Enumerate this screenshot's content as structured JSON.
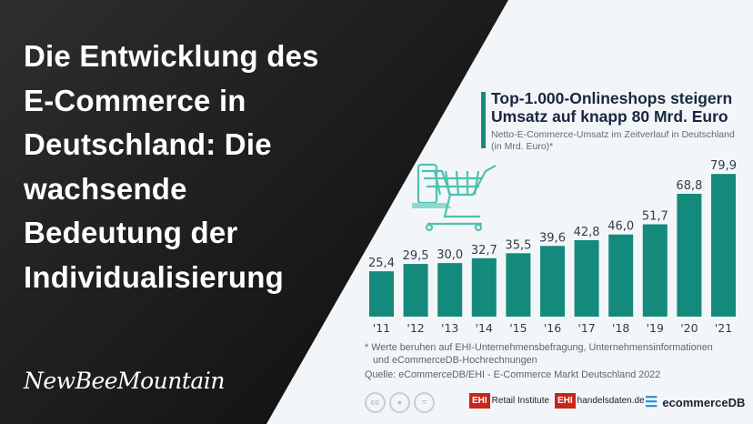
{
  "headline": [
    "Die Entwicklung des",
    "E-Commerce in",
    "Deutschland: Die",
    "wachsende",
    "Bedeutung der",
    "Individualisierung"
  ],
  "brand": "NewBeeMountain",
  "chart_data": {
    "type": "bar",
    "title": "Top-1.000-Onlineshops steigern Umsatz auf knapp 80 Mrd. Euro",
    "title_lines": [
      "Top-1.000-Onlineshops steigern",
      "Umsatz auf knapp 80 Mrd. Euro"
    ],
    "subtitle_lines": [
      "Netto-E-Commerce-Umsatz im Zeitverlauf in Deutschland",
      "(in Mrd. Euro)*"
    ],
    "categories": [
      "'11",
      "'12",
      "'13",
      "'14",
      "'15",
      "'16",
      "'17",
      "'18",
      "'19",
      "'20",
      "'21"
    ],
    "values": [
      25.4,
      29.5,
      30.0,
      32.7,
      35.5,
      39.6,
      42.8,
      46.0,
      51.7,
      68.8,
      79.9
    ],
    "value_labels": [
      "25,4",
      "29,5",
      "30,0",
      "32,7",
      "35,5",
      "39,6",
      "42,8",
      "46,0",
      "51,7",
      "68,8",
      "79,9"
    ],
    "ylim": [
      0,
      80
    ],
    "grid": false,
    "bar_color": "#148a7c"
  },
  "notes": {
    "footnote_lines": [
      "* Werte beruhen auf EHI-Unternehmensbefragung, Unternehmensinformationen",
      "und eCommerceDB-Hochrechnungen"
    ],
    "source": "Quelle: eCommerceDB/EHI - E-Commerce Markt Deutschland 2022"
  },
  "license_icons": [
    "cc-icon",
    "by-icon",
    "nd-icon"
  ],
  "cc_label": "cc",
  "logos": {
    "ehi_mark": "EHI",
    "retail": "Retail Institute",
    "handelsdaten": "handelsdaten.de",
    "ecommercedb": "ecommerceDB"
  }
}
